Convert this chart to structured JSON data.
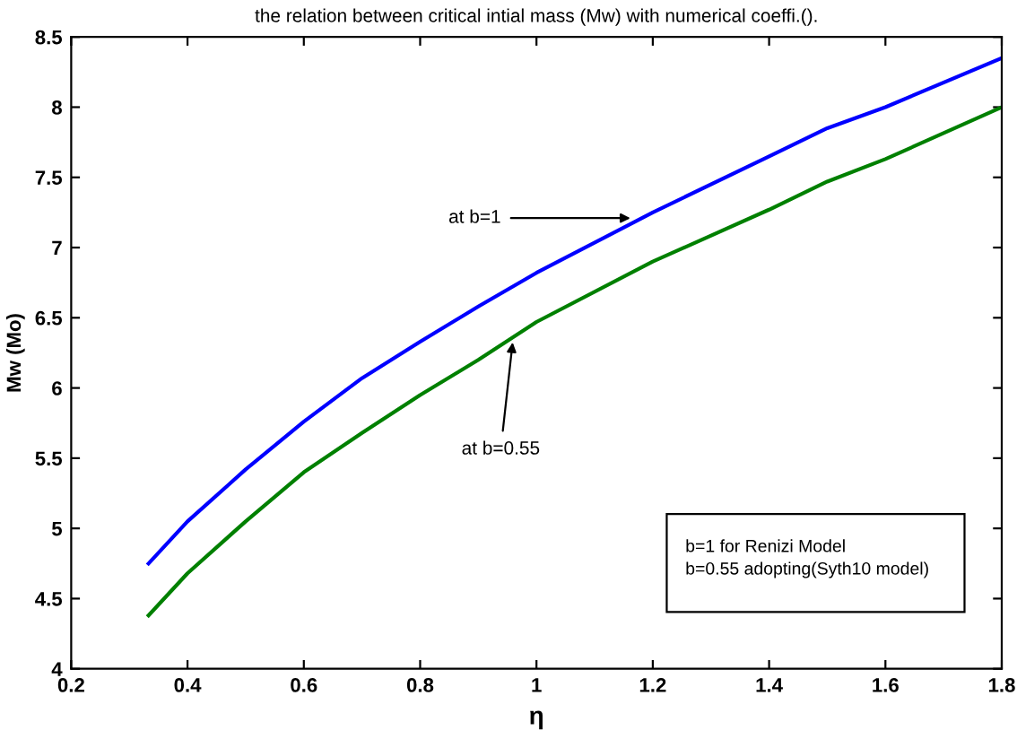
{
  "chart_data": {
    "type": "line",
    "title": "the relation between critical intial mass (Mw) with numerical coeffi.().",
    "xlabel": "η",
    "ylabel": "Mw (Mo)",
    "x": [
      0.333,
      0.4,
      0.5,
      0.6,
      0.7,
      0.8,
      0.9,
      1.0,
      1.2,
      1.4,
      1.5,
      1.6,
      1.8
    ],
    "series": [
      {
        "color": "#0000ff",
        "values": [
          4.75,
          5.05,
          5.42,
          5.76,
          6.07,
          6.33,
          6.58,
          6.82,
          7.25,
          7.65,
          7.85,
          8.0,
          8.35
        ]
      },
      {
        "color": "#008000",
        "values": [
          4.38,
          4.68,
          5.05,
          5.4,
          5.68,
          5.95,
          6.2,
          6.47,
          6.9,
          7.27,
          7.47,
          7.63,
          8.0
        ]
      }
    ],
    "annotations": [
      {
        "text": "at b=1",
        "x": 1.17,
        "y": 7.21
      },
      {
        "text": "at b=0.55",
        "x": 0.96,
        "y": 6.36
      },
      "b=1 for Renizi Model\nb=0.55 adopting(Syth10 model)"
    ],
    "xlim": [
      0.2,
      1.8
    ],
    "xticks": [
      0.2,
      0.4,
      0.6,
      0.8,
      1,
      1.2,
      1.4,
      1.6,
      1.8
    ],
    "ylim": [
      4,
      8.5
    ],
    "yticks": [
      4,
      4.5,
      5,
      5.5,
      6,
      6.5,
      7,
      7.5,
      8,
      8.5
    ],
    "grid": false,
    "legend": false,
    "marker": "none",
    "line_style": "solid"
  }
}
